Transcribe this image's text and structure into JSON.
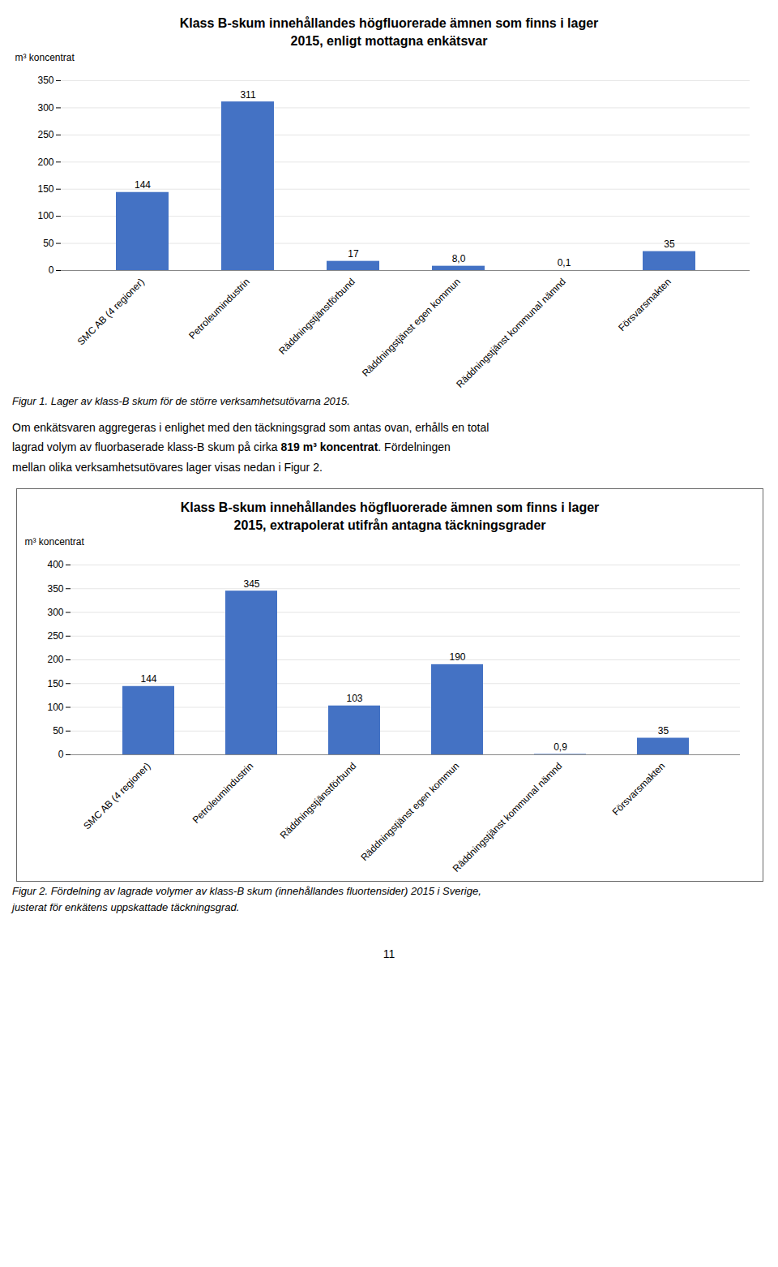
{
  "chart_data": [
    {
      "type": "bar",
      "title": "Klass B-skum innehållandes högfluorerade ämnen som finns i lager\n2015, enligt mottagna enkätsvar",
      "ylabel": "m³ koncentrat",
      "categories": [
        "SMC AB (4 regioner)",
        "Petroleumindustrin",
        "Räddningstjänstförbund",
        "Räddningstjänst egen kommun",
        "Räddningstjänst kommunal nämnd",
        "Försvarsmakten"
      ],
      "values": [
        144,
        311,
        17,
        8.0,
        0.1,
        35
      ],
      "value_labels": [
        "144",
        "311",
        "17",
        "8,0",
        "0,1",
        "35"
      ],
      "color": "#4472C4",
      "ylim": [
        0,
        350
      ],
      "yticks": [
        0,
        50,
        100,
        150,
        200,
        250,
        300,
        350
      ],
      "grid": true,
      "data_labels": true,
      "caption": "Figur 1. Lager av klass-B skum för de större verksamhetsutövarna 2015."
    },
    {
      "type": "bar",
      "title": "Klass B-skum innehållandes högfluorerade ämnen som finns i lager\n2015, extrapolerat utifrån antagna täckningsgrader",
      "ylabel": "m³ koncentrat",
      "categories": [
        "SMC AB (4 regioner)",
        "Petroleumindustrin",
        "Räddningstjänstförbund",
        "Räddningstjänst egen kommun",
        "Räddningstjänst kommunal nämnd",
        "Försvarsmakten"
      ],
      "values": [
        144,
        345,
        103,
        190,
        0.9,
        35
      ],
      "value_labels": [
        "144",
        "345",
        "103",
        "190",
        "0,9",
        "35"
      ],
      "color": "#4472C4",
      "ylim": [
        0,
        400
      ],
      "yticks": [
        0,
        50,
        100,
        150,
        200,
        250,
        300,
        350,
        400
      ],
      "grid": true,
      "data_labels": true,
      "caption": "Figur 2. Fördelning av lagrade volymer av klass-B skum (innehållandes fluortensider) 2015 i Sverige,\njusterat för enkätens uppskattade täckningsgrad."
    }
  ],
  "body_text": [
    "Om enkätsvaren aggregeras i enlighet med den täckningsgrad som antas ovan, erhålls en total",
    "lagrad volym av fluorbaserade klass-B skum på cirka 819 m³ koncentrat. Fördelningen",
    "mellan olika verksamhetsutövares lager visas nedan i Figur 2."
  ],
  "body_bold": "819 m³ koncentrat",
  "page_number": "11"
}
